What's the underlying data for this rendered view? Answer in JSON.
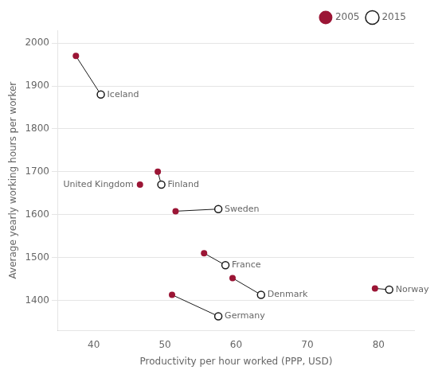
{
  "chart_data": {
    "type": "scatter",
    "xlabel": "Productivity per hour worked (PPP, USD)",
    "ylabel": "Average yearly working hours per worker",
    "categories": [
      "Iceland",
      "United Kingdom",
      "Finland",
      "Sweden",
      "France",
      "Denmark",
      "Germany",
      "Norway"
    ],
    "series": [
      {
        "name": "2005",
        "color": "#9b1535",
        "marker": "circle",
        "x": [
          37.5,
          46.5,
          49.0,
          51.5,
          55.5,
          59.5,
          51.0,
          79.5
        ],
        "values": [
          1970,
          1670,
          1700,
          1608,
          1510,
          1452,
          1413,
          1428
        ]
      },
      {
        "name": "2015",
        "color": "#1a1a1a",
        "marker": "open_circle",
        "x": [
          41.0,
          null,
          49.5,
          57.5,
          58.5,
          63.5,
          57.5,
          81.5
        ],
        "values": [
          1880,
          null,
          1670,
          1613,
          1482,
          1413,
          1363,
          1425
        ]
      }
    ],
    "xlim": [
      35,
      85
    ],
    "ylim": [
      1330,
      2030
    ],
    "xticks": [
      40,
      50,
      60,
      70,
      80
    ],
    "yticks": [
      1400,
      1500,
      1600,
      1700,
      1800,
      1900,
      2000
    ],
    "grid": "y",
    "legend": "upper right"
  }
}
